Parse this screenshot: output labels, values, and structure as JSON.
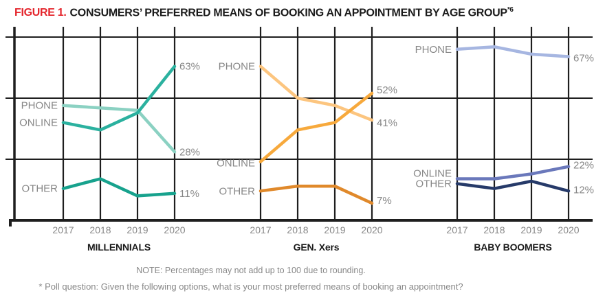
{
  "title": {
    "figure_label": "FIGURE 1.",
    "text": "CONSUMERS’ PREFERRED MEANS OF BOOKING AN APPOINTMENT BY AGE GROUP",
    "superscript": "*6"
  },
  "chart_data": {
    "type": "line",
    "ylim": [
      0,
      100
    ],
    "gridlines_percent": [
      25,
      50,
      75
    ],
    "grid": "on",
    "years": [
      "2017",
      "2018",
      "2019",
      "2020"
    ],
    "panels": [
      {
        "title": "MILLENNIALS",
        "series": [
          {
            "name": "PHONE",
            "color": "#8bd1c2",
            "values": [
              47,
              46,
              45,
              28
            ],
            "end_label": "28%"
          },
          {
            "name": "ONLINE",
            "color": "#2bb19f",
            "values": [
              40,
              37,
              44,
              63
            ],
            "end_label": "63%"
          },
          {
            "name": "OTHER",
            "color": "#17a28d",
            "values": [
              13,
              17,
              10,
              11
            ],
            "end_label": "11%"
          }
        ]
      },
      {
        "title": "GEN. Xers",
        "series": [
          {
            "name": "PHONE",
            "color": "#fcc57f",
            "values": [
              63,
              50,
              47,
              41
            ],
            "end_label": "41%"
          },
          {
            "name": "ONLINE",
            "color": "#f7a93c",
            "values": [
              24,
              37,
              40,
              52
            ],
            "end_label": "52%"
          },
          {
            "name": "OTHER",
            "color": "#e0892b",
            "values": [
              12,
              14,
              14,
              7
            ],
            "end_label": "7%"
          }
        ]
      },
      {
        "title": "BABY BOOMERS",
        "series": [
          {
            "name": "PHONE",
            "color": "#a6b6e1",
            "values": [
              70,
              71,
              68,
              67
            ],
            "end_label": "67%"
          },
          {
            "name": "ONLINE",
            "color": "#6a78bb",
            "values": [
              17,
              17,
              19,
              22
            ],
            "end_label": "22%"
          },
          {
            "name": "OTHER",
            "color": "#263a69",
            "values": [
              15,
              13,
              16,
              12
            ],
            "end_label": "12%"
          }
        ]
      }
    ]
  },
  "notes": {
    "note": "NOTE: Percentages may not add up to 100 due to rounding.",
    "footnote": "* Poll question: Given the following options, what is your most preferred means of booking an appointment?"
  },
  "colors": {
    "figure_label_red": "#e4252c",
    "grid": "#1e1e1e",
    "label_gray": "#878787",
    "text_black": "#1a1a1a"
  }
}
